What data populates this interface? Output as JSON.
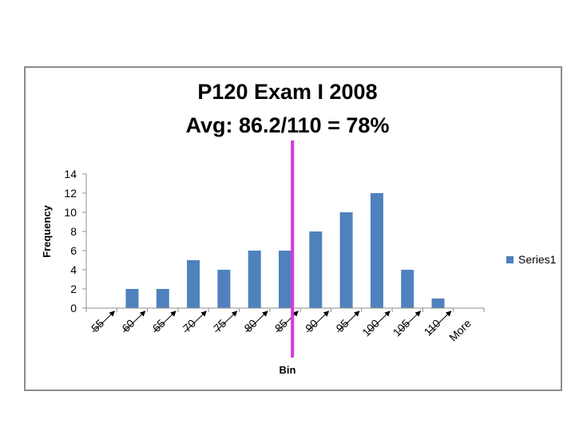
{
  "chart_data": {
    "type": "bar",
    "title_line1": "P120 Exam I 2008",
    "title_line2": "Avg: 86.2/110 = 78%",
    "xlabel": "Bin",
    "ylabel": "Frequency",
    "categories": [
      "55",
      "60",
      "65",
      "70",
      "75",
      "80",
      "85",
      "90",
      "95",
      "100",
      "105",
      "110",
      "More"
    ],
    "series": [
      {
        "name": "Series1",
        "values": [
          0,
          2,
          2,
          5,
          4,
          6,
          6,
          8,
          10,
          12,
          4,
          1,
          0
        ],
        "color": "#4f81bd"
      }
    ],
    "yticks": [
      0,
      2,
      4,
      6,
      8,
      10,
      12,
      14
    ],
    "ylim": [
      0,
      14
    ],
    "legend_position": "right",
    "average_marker": {
      "value": 86.2,
      "color": "#d63ad6"
    },
    "arrow_annotations": true,
    "grid": false
  }
}
